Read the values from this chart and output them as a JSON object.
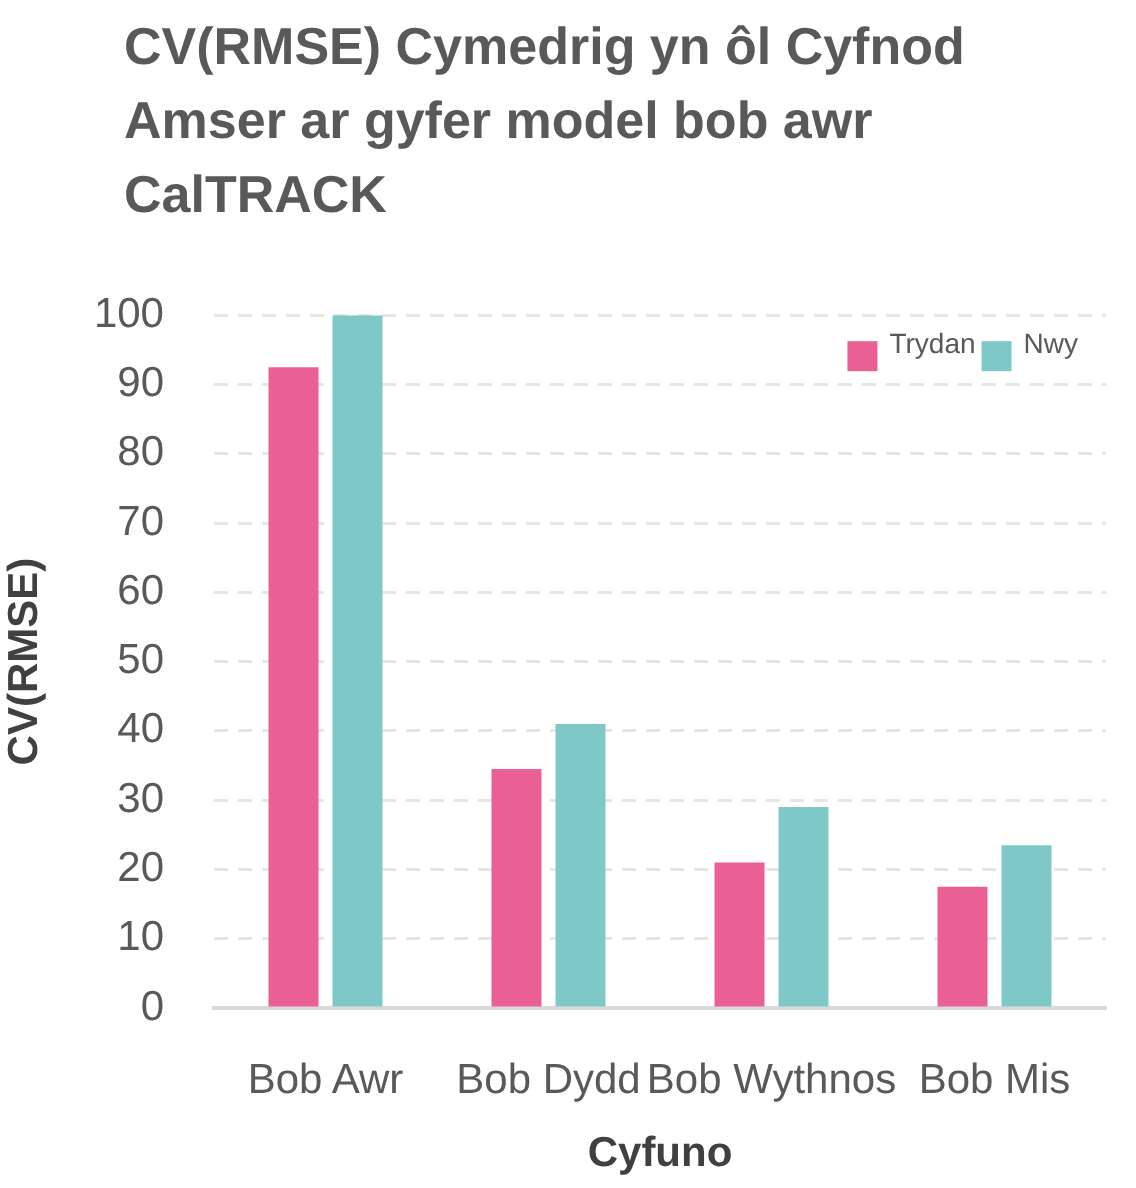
{
  "chart_data": {
    "type": "bar",
    "title": "CV(RMSE) Cymedrig yn ôl Cyfnod Amser ar gyfer model bob awr CalTRACK",
    "xlabel": "Cyfuno",
    "ylabel": "CV(RMSE)",
    "categories": [
      "Bob Awr",
      "Bob Dydd",
      "Bob Wythnos",
      "Bob Mis"
    ],
    "series": [
      {
        "name": "Trydan",
        "color": "#ea5f94",
        "values": [
          92.5,
          34.5,
          21,
          17.5
        ]
      },
      {
        "name": "Nwy",
        "color": "#7ec9c7",
        "values": [
          100,
          41,
          29,
          23.5
        ]
      }
    ],
    "ylim": [
      0,
      100
    ],
    "yticks": [
      0,
      10,
      20,
      30,
      40,
      50,
      60,
      70,
      80,
      90,
      100
    ],
    "grid": "y",
    "legend": "top right"
  }
}
